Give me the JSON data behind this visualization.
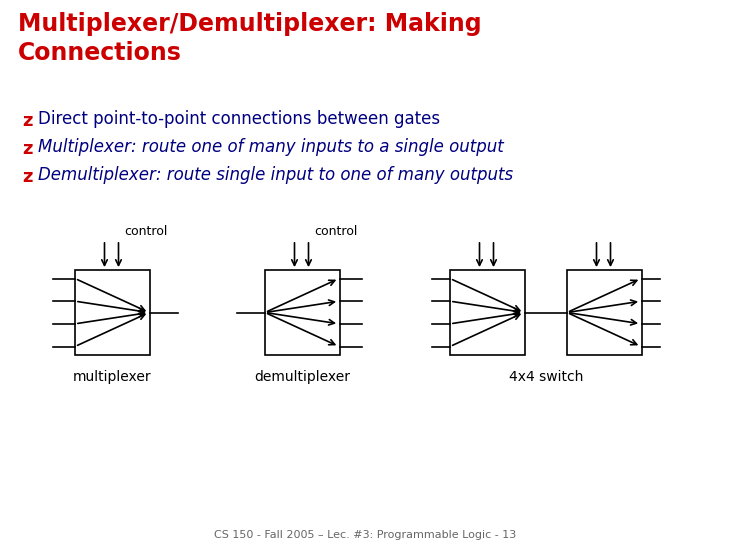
{
  "title_line1": "Multiplexer/Demultiplexer: Making",
  "title_line2": "Connections",
  "title_color": "#cc0000",
  "title_fontsize": 17,
  "bullet_char": "z",
  "bullet_color": "#cc0000",
  "bullets": [
    "Direct point-to-point connections between gates",
    "Multiplexer: route one of many inputs to a single output",
    "Demultiplexer: route single input to one of many outputs"
  ],
  "bullet_italic": [
    false,
    true,
    true
  ],
  "bullet_bold": [
    false,
    false,
    false
  ],
  "bullet_fontsize": 12,
  "bullet_color_text": "#000080",
  "footnote": "CS 150 - Fall 2005 – Lec. #3: Programmable Logic - 13",
  "footnote_color": "#666666",
  "footnote_fontsize": 8,
  "bg_color": "#ffffff",
  "diagram_labels": [
    "multiplexer",
    "demultiplexer",
    "4x4 switch"
  ],
  "diagram_label_fontsize": 10
}
